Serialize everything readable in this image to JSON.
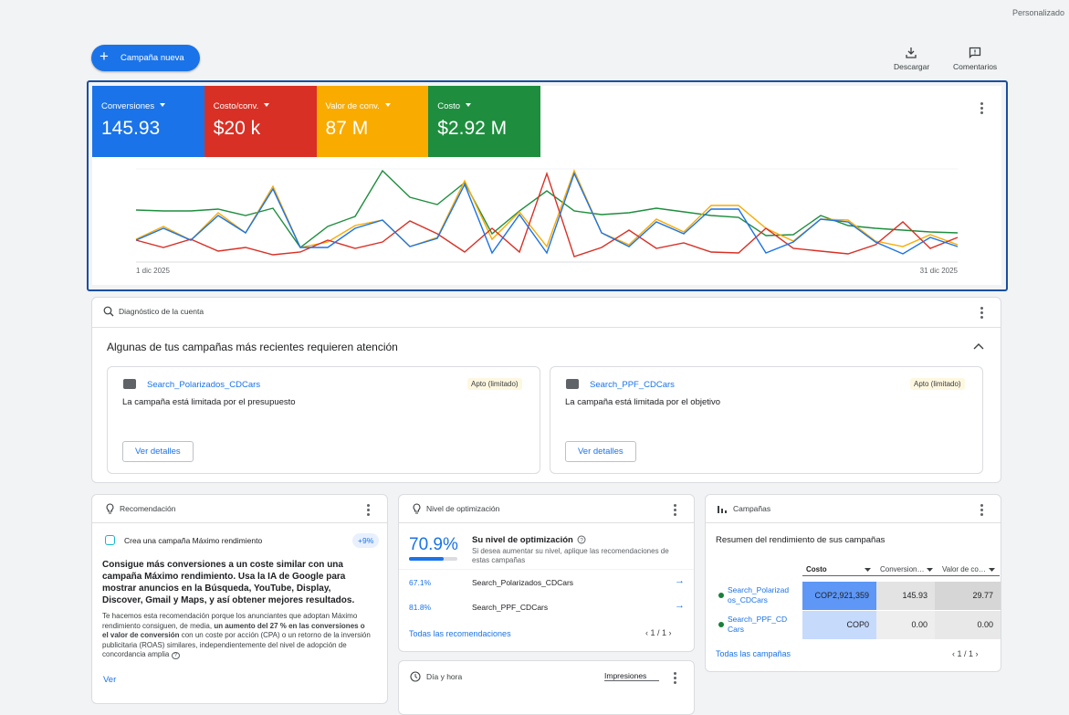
{
  "header": {
    "view": "Personalizado",
    "new_campaign": "Campaña nueva",
    "download": "Descargar",
    "feedback": "Comentarios"
  },
  "chart_data": {
    "type": "line",
    "categories": [
      "1 dic 2025",
      null,
      null,
      null,
      null,
      null,
      null,
      null,
      null,
      null,
      null,
      null,
      null,
      null,
      null,
      null,
      null,
      null,
      null,
      null,
      null,
      null,
      null,
      null,
      null,
      null,
      null,
      null,
      null,
      null,
      "31 dic 2025"
    ],
    "ylim": [
      0,
      102
    ],
    "series": [
      {
        "name": "Conversiones",
        "total": "145.93",
        "color": "#1a73e8",
        "values": [
          24,
          37,
          24,
          51,
          32,
          80,
          16,
          16,
          37,
          46,
          17,
          26,
          85,
          10,
          52,
          10,
          97,
          32,
          17,
          44,
          31,
          58,
          58,
          10,
          22,
          47,
          44,
          22,
          9,
          27,
          17
        ]
      },
      {
        "name": "Costo/conv.",
        "total": "$20 k",
        "color": "#d93025",
        "values": [
          24,
          16,
          25,
          12,
          16,
          8,
          11,
          24,
          15,
          22,
          45,
          31,
          11,
          37,
          11,
          97,
          6,
          16,
          35,
          15,
          21,
          11,
          10,
          37,
          15,
          12,
          9,
          19,
          44,
          15,
          27
        ]
      },
      {
        "name": "Valor de conv.",
        "total": "87 M",
        "color": "#f9ab00",
        "values": [
          25,
          39,
          24,
          54,
          32,
          83,
          16,
          22,
          40,
          46,
          17,
          27,
          89,
          25,
          55,
          17,
          100,
          32,
          19,
          47,
          33,
          62,
          62,
          37,
          23,
          47,
          46,
          23,
          17,
          30,
          19
        ]
      },
      {
        "name": "Costo",
        "total": "$2.92 M",
        "color": "#1e8e3e",
        "values": [
          57,
          56,
          56,
          58,
          51,
          59,
          16,
          39,
          50,
          100,
          71,
          63,
          87,
          31,
          56,
          78,
          56,
          52,
          54,
          59,
          55,
          51,
          49,
          29,
          30,
          51,
          40,
          37,
          35,
          33,
          32
        ]
      }
    ]
  },
  "diagnostics": {
    "title": "Diagnóstico de la cuenta",
    "heading": "Algunas de tus campañas más recientes requieren atención",
    "cards": [
      {
        "campaign": "Search_Polarizados_CDCars",
        "status": "Apto (limitado)",
        "message": "La campaña está limitada por el presupuesto",
        "action": "Ver detalles"
      },
      {
        "campaign": "Search_PPF_CDCars",
        "status": "Apto (limitado)",
        "message": "La campaña está limitada por el objetivo",
        "action": "Ver detalles"
      }
    ]
  },
  "recommendation": {
    "title": "Recomendación",
    "item": "Crea una campaña Máximo rendimiento",
    "uplift": "+9%",
    "headline": "Consigue más conversiones a un coste similar con una campaña Máximo rendimiento. Usa la IA de Google para mostrar anuncios en la Búsqueda, YouTube, Display, Discover, Gmail y Maps, y así obtener mejores resultados.",
    "detail_start": "Te hacemos esta recomendación porque los anunciantes que adoptan Máximo rendimiento consiguen, de media,",
    "detail_bold": "un aumento del 27 % en las conversiones o el valor de conversión",
    "detail_end": "con un coste por acción (CPA) o un retorno de la inversión publicitaria (ROAS) similares, independientemente del nivel de adopción de concordancia amplia",
    "action": "Ver"
  },
  "optimization": {
    "title": "Nivel de optimización",
    "score": {
      "value": 70.9,
      "label": "70.9%"
    },
    "heading": "Su nivel de optimización",
    "description": "Si desea aumentar su nivel, aplique las recomendaciones de estas campañas",
    "campaigns": [
      {
        "score": "67.1%",
        "name": "Search_Polarizados_CDCars"
      },
      {
        "score": "81.8%",
        "name": "Search_PPF_CDCars"
      }
    ],
    "link": "Todas las recomendaciones",
    "pagination": "1 / 1"
  },
  "campaigns": {
    "title": "Campañas",
    "subtitle": "Resumen del rendimiento de sus campañas",
    "columns": [
      "Costo",
      "Conversion…",
      "Valor de co…"
    ],
    "rows": [
      [
        "Search_Polarizados_CDCars",
        "COP2,921,359",
        "145.93",
        "29.77"
      ],
      [
        "Search_PPF_CDCars",
        "COP0",
        "0.00",
        "0.00"
      ]
    ],
    "link": "Todas las campañas",
    "pagination": "1 / 1"
  },
  "day_hour": {
    "title": "Día y hora",
    "metric": "Impresiones"
  }
}
